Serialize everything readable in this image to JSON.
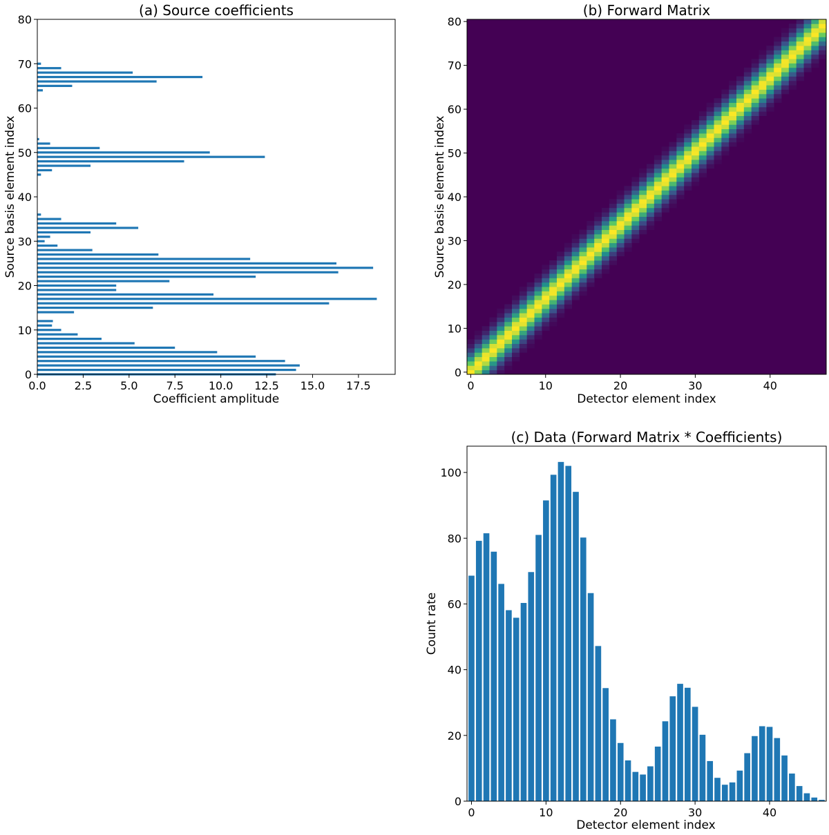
{
  "figure": {
    "panels": [
      "(a) Source coefficients",
      "(b) Forward Matrix",
      "(c) Data (Forward Matrix * Coefficients)"
    ]
  },
  "chart_data": [
    {
      "id": "a",
      "type": "bar",
      "orientation": "horizontal",
      "title": "(a) Source coefficients",
      "xlabel": "Coefficient amplitude",
      "ylabel": "Source basis element index",
      "xlim": [
        0,
        19.5
      ],
      "ylim": [
        0,
        80
      ],
      "xticks": [
        "0.0",
        "2.5",
        "5.0",
        "7.5",
        "10.0",
        "12.5",
        "15.0",
        "17.5"
      ],
      "yticks": [
        "0",
        "10",
        "20",
        "30",
        "40",
        "50",
        "60",
        "70",
        "80"
      ],
      "color": "#1f77b4",
      "categories": [
        0,
        1,
        2,
        3,
        4,
        5,
        6,
        7,
        8,
        9,
        10,
        11,
        12,
        13,
        14,
        15,
        16,
        17,
        18,
        19,
        20,
        21,
        22,
        23,
        24,
        25,
        26,
        27,
        28,
        29,
        30,
        31,
        32,
        33,
        34,
        35,
        36,
        37,
        38,
        39,
        40,
        41,
        42,
        43,
        44,
        45,
        46,
        47,
        48,
        49,
        50,
        51,
        52,
        53,
        54,
        55,
        56,
        57,
        58,
        59,
        60,
        61,
        62,
        63,
        64,
        65,
        66,
        67,
        68,
        69,
        70,
        71,
        72,
        73,
        74,
        75,
        76,
        77,
        78,
        79,
        80
      ],
      "values": [
        13.0,
        14.1,
        14.3,
        13.5,
        11.9,
        9.8,
        7.5,
        5.3,
        3.5,
        2.2,
        1.3,
        0.8,
        0.85,
        0,
        2.0,
        6.3,
        15.9,
        18.5,
        9.6,
        4.3,
        4.3,
        7.2,
        11.9,
        16.4,
        18.3,
        16.3,
        11.6,
        6.6,
        3.0,
        1.1,
        0.4,
        0.7,
        2.9,
        5.5,
        4.3,
        1.3,
        0.2,
        0,
        0,
        0,
        0,
        0,
        0,
        0,
        0,
        0.2,
        0.8,
        2.9,
        8.0,
        12.4,
        9.4,
        3.4,
        0.7,
        0.1,
        0,
        0,
        0,
        0,
        0,
        0,
        0,
        0,
        0,
        0,
        0.3,
        1.9,
        6.5,
        9.0,
        5.2,
        1.3,
        0.2,
        0,
        0,
        0,
        0,
        0,
        0,
        0,
        0,
        0,
        0
      ]
    },
    {
      "id": "b",
      "type": "heatmap",
      "title": "(b) Forward Matrix",
      "xlabel": "Detector element index",
      "ylabel": "Source basis element index",
      "cols": 48,
      "rows": 81,
      "xticks": [
        "0",
        "10",
        "20",
        "30",
        "40"
      ],
      "yticks": [
        "0",
        "10",
        "20",
        "30",
        "40",
        "50",
        "60",
        "70",
        "80"
      ],
      "colormap": "viridis",
      "colormap_stops": [
        "#440154",
        "#3b528b",
        "#21918c",
        "#5ec962",
        "#fde725"
      ],
      "diagonal_slope": 1.68,
      "band_sigma_detector": 1.6
    },
    {
      "id": "c",
      "type": "bar",
      "title": "(c) Data (Forward Matrix * Coefficients)",
      "xlabel": "Detector element index",
      "ylabel": "Count rate",
      "xlim": [
        -0.6,
        47.6
      ],
      "ylim": [
        0,
        108
      ],
      "xticks": [
        "0",
        "10",
        "20",
        "30",
        "40"
      ],
      "yticks": [
        "0",
        "20",
        "40",
        "60",
        "80",
        "100"
      ],
      "color": "#1f77b4",
      "categories": [
        0,
        1,
        2,
        3,
        4,
        5,
        6,
        7,
        8,
        9,
        10,
        11,
        12,
        13,
        14,
        15,
        16,
        17,
        18,
        19,
        20,
        21,
        22,
        23,
        24,
        25,
        26,
        27,
        28,
        29,
        30,
        31,
        32,
        33,
        34,
        35,
        36,
        37,
        38,
        39,
        40,
        41,
        42,
        43,
        44,
        45,
        46,
        47
      ],
      "values": [
        68.6,
        79.2,
        81.5,
        75.9,
        66.1,
        58.1,
        55.8,
        60.3,
        69.7,
        81.0,
        91.5,
        99.3,
        103.2,
        102.0,
        94.1,
        80.2,
        63.3,
        47.2,
        34.4,
        24.9,
        17.7,
        12.4,
        8.9,
        8.1,
        10.6,
        16.6,
        24.3,
        31.9,
        35.7,
        34.5,
        28.7,
        20.2,
        12.2,
        7.1,
        5.0,
        5.7,
        9.3,
        14.6,
        19.8,
        22.8,
        22.6,
        19.2,
        13.9,
        8.4,
        4.6,
        2.4,
        1.1,
        0.4
      ]
    }
  ]
}
